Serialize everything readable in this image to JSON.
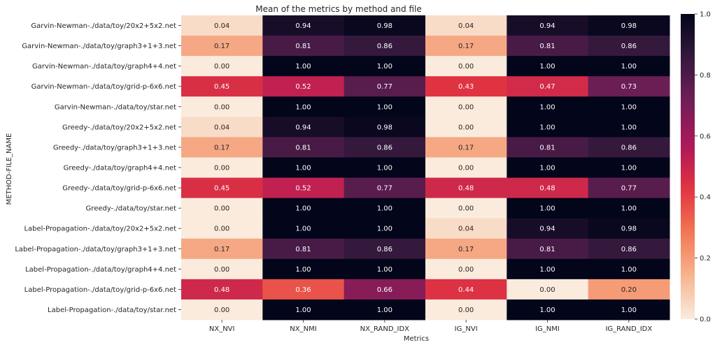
{
  "chart_data": {
    "type": "heatmap",
    "title": "Mean of the metrics by method and file",
    "xlabel": "Metrics",
    "ylabel": "METHOD-FILE_NAME",
    "columns": [
      "NX_NVI",
      "NX_NMI",
      "NX_RAND_IDX",
      "IG_NVI",
      "IG_NMI",
      "IG_RAND_IDX"
    ],
    "rows": [
      "Garvin-Newman-./data/toy/20x2+5x2.net",
      "Garvin-Newman-./data/toy/graph3+1+3.net",
      "Garvin-Newman-./data/toy/graph4+4.net",
      "Garvin-Newman-./data/toy/grid-p-6x6.net",
      "Garvin-Newman-./data/toy/star.net",
      "Greedy-./data/toy/20x2+5x2.net",
      "Greedy-./data/toy/graph3+1+3.net",
      "Greedy-./data/toy/graph4+4.net",
      "Greedy-./data/toy/grid-p-6x6.net",
      "Greedy-./data/toy/star.net",
      "Label-Propagation-./data/toy/20x2+5x2.net",
      "Label-Propagation-./data/toy/graph3+1+3.net",
      "Label-Propagation-./data/toy/graph4+4.net",
      "Label-Propagation-./data/toy/grid-p-6x6.net",
      "Label-Propagation-./data/toy/star.net"
    ],
    "values": [
      [
        "0.04",
        "0.94",
        "0.98",
        "0.04",
        "0.94",
        "0.98"
      ],
      [
        "0.17",
        "0.81",
        "0.86",
        "0.17",
        "0.81",
        "0.86"
      ],
      [
        "0.00",
        "1.00",
        "1.00",
        "0.00",
        "1.00",
        "1.00"
      ],
      [
        "0.45",
        "0.52",
        "0.77",
        "0.43",
        "0.47",
        "0.73"
      ],
      [
        "0.00",
        "1.00",
        "1.00",
        "0.00",
        "1.00",
        "1.00"
      ],
      [
        "0.04",
        "0.94",
        "0.98",
        "0.00",
        "1.00",
        "1.00"
      ],
      [
        "0.17",
        "0.81",
        "0.86",
        "0.17",
        "0.81",
        "0.86"
      ],
      [
        "0.00",
        "1.00",
        "1.00",
        "0.00",
        "1.00",
        "1.00"
      ],
      [
        "0.45",
        "0.52",
        "0.77",
        "0.48",
        "0.48",
        "0.77"
      ],
      [
        "0.00",
        "1.00",
        "1.00",
        "0.00",
        "1.00",
        "1.00"
      ],
      [
        "0.00",
        "1.00",
        "1.00",
        "0.04",
        "0.94",
        "0.98"
      ],
      [
        "0.17",
        "0.81",
        "0.86",
        "0.17",
        "0.81",
        "0.86"
      ],
      [
        "0.00",
        "1.00",
        "1.00",
        "0.00",
        "1.00",
        "1.00"
      ],
      [
        "0.48",
        "0.36",
        "0.66",
        "0.44",
        "0.00",
        "0.20"
      ],
      [
        "0.00",
        "1.00",
        "1.00",
        "0.00",
        "1.00",
        "1.00"
      ]
    ],
    "colorbar": {
      "range": [
        0.0,
        1.0
      ],
      "ticks": [
        "0.0",
        "0.2",
        "0.4",
        "0.6",
        "0.8",
        "1.0"
      ],
      "colormap": "rocket_r"
    },
    "colorscale": [
      "#faebdd",
      "#f6b48f",
      "#f37651",
      "#e13342",
      "#ad1759",
      "#701f57",
      "#35193e",
      "#03051a"
    ]
  }
}
